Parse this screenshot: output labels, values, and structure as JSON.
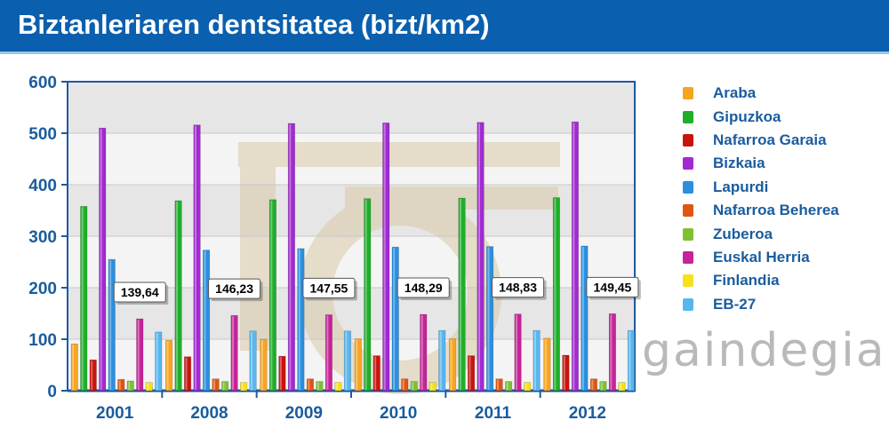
{
  "header": {
    "title": "Biztanleriaren dentsitatea (bizt/km2)"
  },
  "watermark": "gaindegia",
  "chart_data": {
    "type": "bar",
    "categories": [
      "2001",
      "2008",
      "2009",
      "2010",
      "2011",
      "2012"
    ],
    "ylim": [
      0,
      600
    ],
    "yticks": [
      0,
      100,
      200,
      300,
      400,
      500,
      600
    ],
    "grid": true,
    "legend_position": "right",
    "series": [
      {
        "name": "Araba",
        "color": "#f7a520",
        "values": [
          91,
          98,
          100,
          101,
          101,
          102
        ]
      },
      {
        "name": "Gipuzkoa",
        "color": "#1fae2a",
        "values": [
          358,
          369,
          371,
          373,
          374,
          375
        ]
      },
      {
        "name": "Nafarroa Garaia",
        "color": "#c8140f",
        "values": [
          60,
          66,
          67,
          68,
          68,
          69
        ]
      },
      {
        "name": "Bizkaia",
        "color": "#a12ad0",
        "values": [
          510,
          516,
          519,
          520,
          521,
          522
        ]
      },
      {
        "name": "Lapurdi",
        "color": "#2a8fe0",
        "values": [
          255,
          273,
          276,
          279,
          280,
          281
        ]
      },
      {
        "name": "Nafarroa Beherea",
        "color": "#e05512",
        "values": [
          22,
          23,
          23,
          23,
          23,
          23
        ]
      },
      {
        "name": "Zuberoa",
        "color": "#7fc035",
        "values": [
          19,
          18,
          18,
          18,
          18,
          18
        ]
      },
      {
        "name": "Euskal Herria",
        "color": "#c62399",
        "values": [
          139.64,
          146.23,
          147.55,
          148.29,
          148.83,
          149.45
        ]
      },
      {
        "name": "Finlandia",
        "color": "#f6e11c",
        "values": [
          16,
          16,
          16,
          16,
          16,
          16
        ]
      },
      {
        "name": "EB-27",
        "color": "#58b6ef",
        "values": [
          114,
          116,
          116,
          117,
          117,
          117
        ]
      }
    ],
    "annotations": [
      "139,64",
      "146,23",
      "147,55",
      "148,29",
      "148,83",
      "149,45"
    ]
  }
}
